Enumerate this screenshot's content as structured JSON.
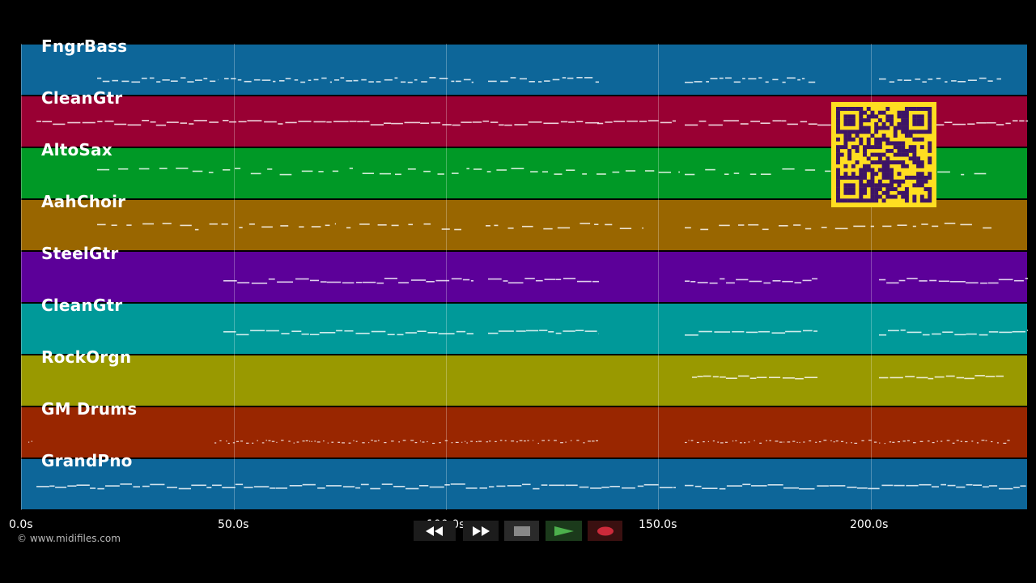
{
  "tracks": [
    {
      "name": "FngrBass",
      "color": "#0d6699"
    },
    {
      "name": "CleanGtr",
      "color": "#990033"
    },
    {
      "name": "AltoSax",
      "color": "#009926"
    },
    {
      "name": "AahChoir",
      "color": "#996600"
    },
    {
      "name": "SteelGtr",
      "color": "#5c0099"
    },
    {
      "name": "CleanGtr",
      "color": "#009999"
    },
    {
      "name": "RockOrgn",
      "color": "#999900"
    },
    {
      "name": "GM Drums",
      "color": "#992600"
    },
    {
      "name": "GrandPno",
      "color": "#0d6699"
    }
  ],
  "time_axis": {
    "ticks": [
      "0.0s",
      "50.0s",
      "100.0s",
      "150.0s",
      "200.0s"
    ],
    "tick_seconds": [
      0,
      50,
      100,
      150,
      200
    ]
  },
  "credit": "© www.midifiles.com",
  "controls": {
    "rewind": "rewind-icon",
    "fast_forward": "fast-forward-icon",
    "stop": "stop-icon",
    "play": "play-icon",
    "record": "record-icon"
  },
  "qr_accent": "#ffde21"
}
